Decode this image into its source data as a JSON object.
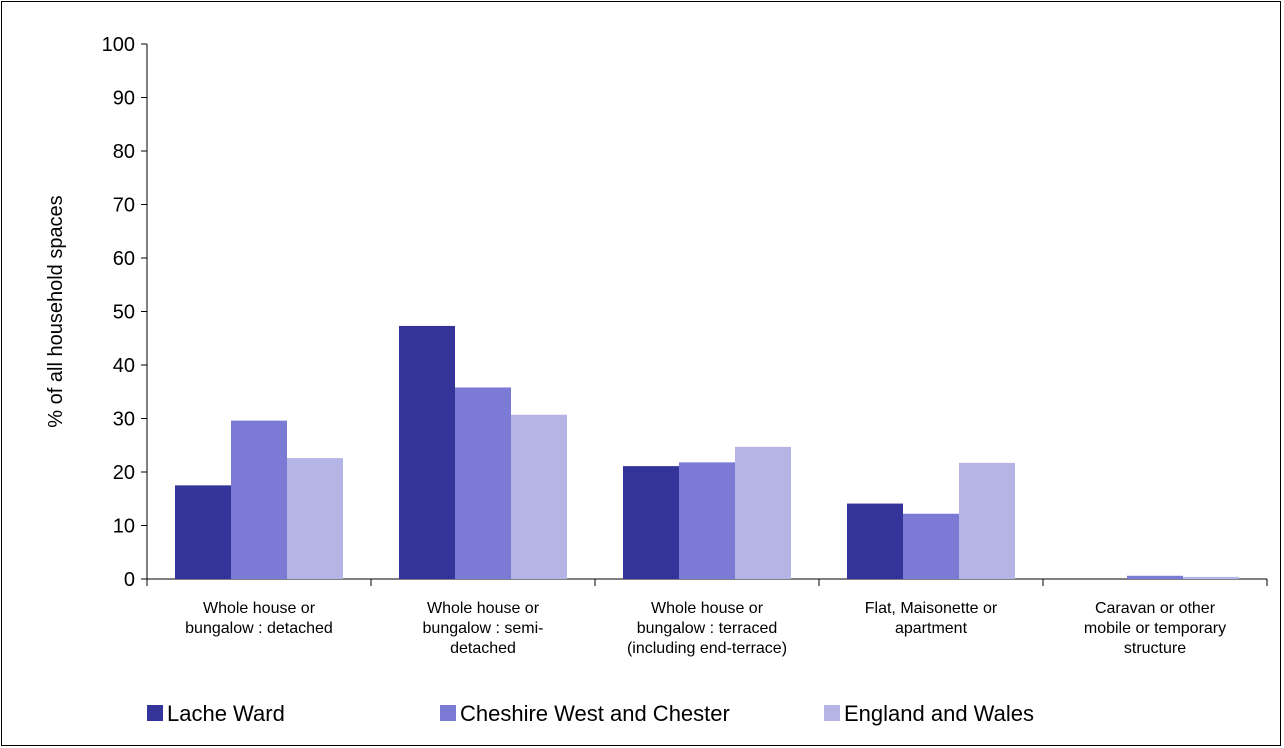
{
  "chart_data": {
    "type": "bar",
    "title": "",
    "xlabel": "",
    "ylabel": "% of all household spaces",
    "ylim": [
      0,
      100
    ],
    "yticks": [
      0,
      10,
      20,
      30,
      40,
      50,
      60,
      70,
      80,
      90,
      100
    ],
    "grid": false,
    "legend_position": "bottom",
    "categories": [
      [
        "Whole house or",
        "bungalow : detached"
      ],
      [
        "Whole house or",
        "bungalow : semi-",
        "detached"
      ],
      [
        "Whole house or",
        "bungalow : terraced",
        "(including end-terrace)"
      ],
      [
        "Flat, Maisonette or",
        "apartment"
      ],
      [
        "Caravan or other",
        "mobile or temporary",
        "structure"
      ]
    ],
    "series": [
      {
        "name": "Lache Ward",
        "color": "#333399",
        "values": [
          17.5,
          47.3,
          21.1,
          14.1,
          0.0
        ]
      },
      {
        "name": "Cheshire West and Chester",
        "color": "#7b7bd6",
        "values": [
          29.6,
          35.8,
          21.8,
          12.2,
          0.6
        ]
      },
      {
        "name": "England and Wales",
        "color": "#b4b4e6",
        "values": [
          22.6,
          30.7,
          24.7,
          21.7,
          0.4
        ]
      }
    ]
  }
}
